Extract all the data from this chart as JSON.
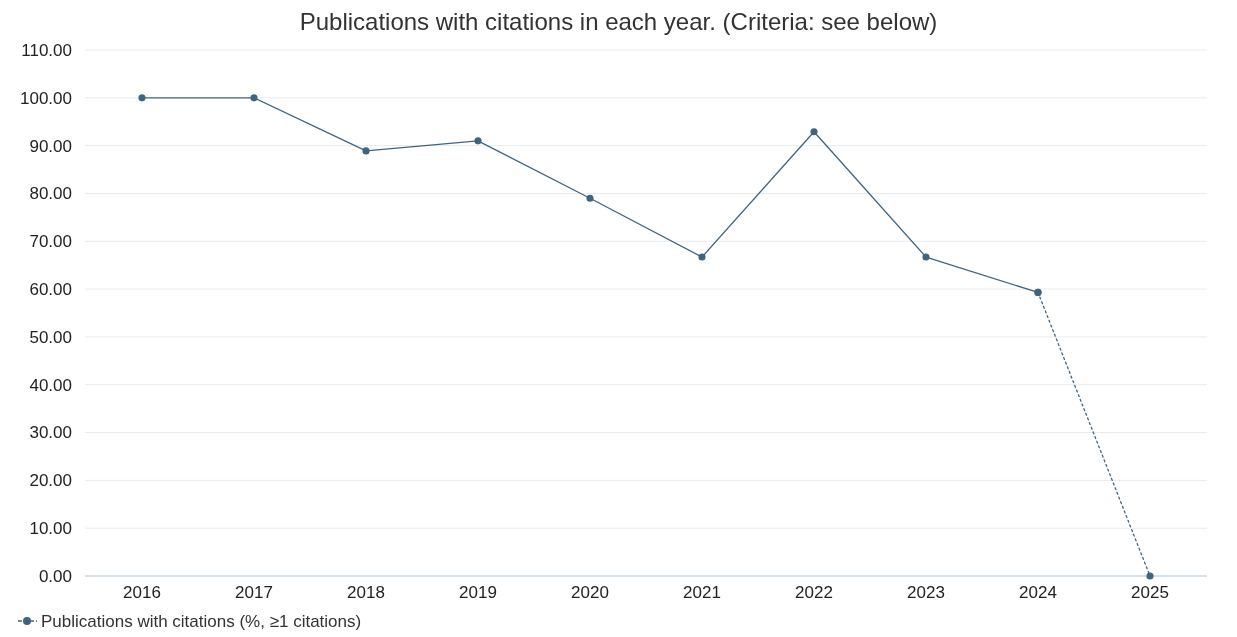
{
  "chart_data": {
    "type": "line",
    "title": "Publications with citations in each year. (Criteria: see below)",
    "categories": [
      "2016",
      "2017",
      "2018",
      "2019",
      "2020",
      "2021",
      "2022",
      "2023",
      "2024",
      "2025"
    ],
    "series": [
      {
        "name": "Publications with citations (%, ≥1 citations)",
        "color": "#3d6582",
        "line_style": "solid",
        "values": [
          100,
          100,
          88.9,
          91,
          79,
          66.7,
          92.9,
          66.7,
          59.3,
          null
        ]
      },
      {
        "color": "#3d6582",
        "line_style": "dotted",
        "values": [
          null,
          null,
          null,
          null,
          null,
          null,
          null,
          null,
          59.3,
          0
        ]
      }
    ],
    "ylim": [
      0,
      110
    ],
    "yticks": [
      {
        "value": 0,
        "label": "0.00"
      },
      {
        "value": 10,
        "label": "10.00"
      },
      {
        "value": 20,
        "label": "20.00"
      },
      {
        "value": 30,
        "label": "30.00"
      },
      {
        "value": 40,
        "label": "40.00"
      },
      {
        "value": 50,
        "label": "50.00"
      },
      {
        "value": 60,
        "label": "60.00"
      },
      {
        "value": 70,
        "label": "70.00"
      },
      {
        "value": 80,
        "label": "80.00"
      },
      {
        "value": 90,
        "label": "90.00"
      },
      {
        "value": 100,
        "label": "100.00"
      },
      {
        "value": 110,
        "label": "110.00"
      }
    ],
    "grid": "y",
    "legend": "bottom left",
    "marker": "circle"
  }
}
